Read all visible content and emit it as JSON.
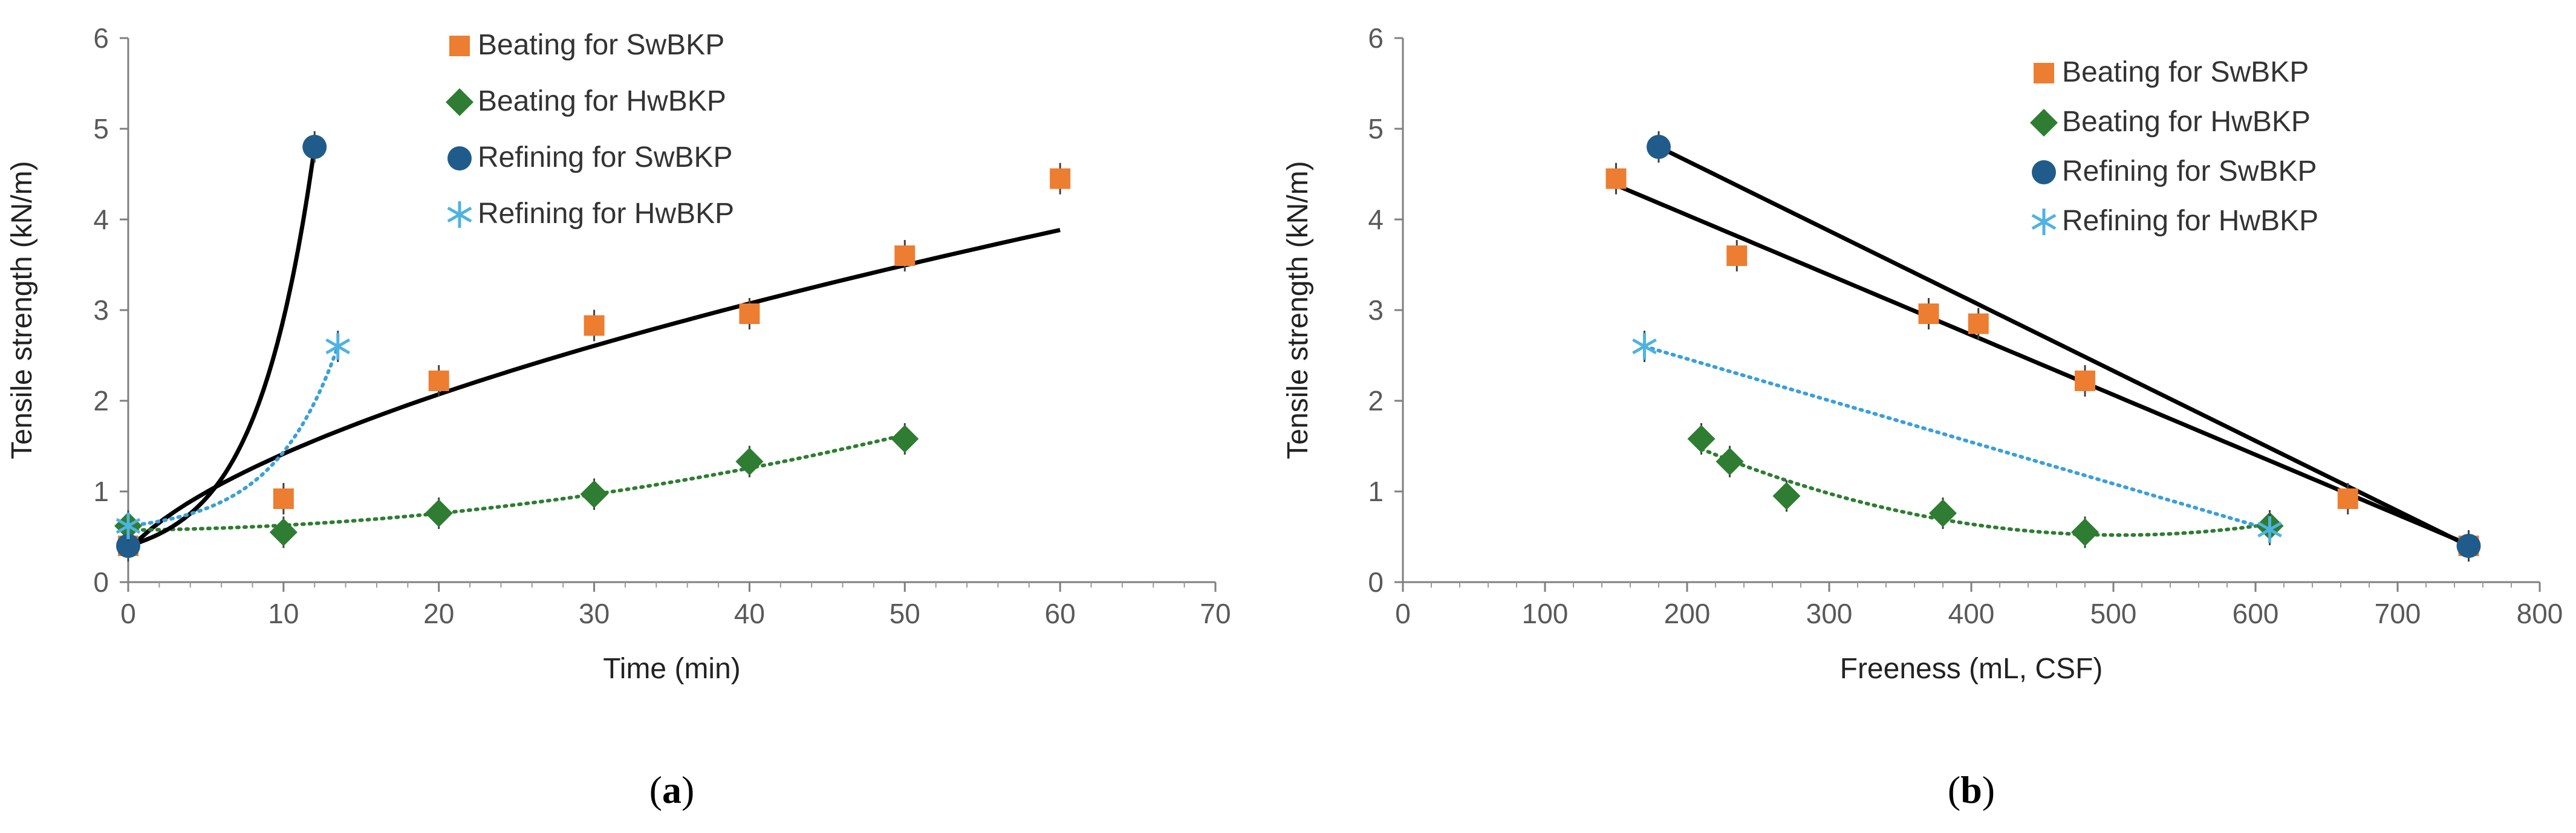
{
  "chart_data": [
    {
      "type": "scatter",
      "panel": "(a)",
      "panel_letter": "a",
      "xlabel": "Time (min)",
      "ylabel": "Tensile strength (kN/m)",
      "xlim": [
        0,
        70
      ],
      "ylim": [
        0,
        6
      ],
      "xticks": [
        0,
        10,
        20,
        30,
        40,
        50,
        60,
        70
      ],
      "yticks": [
        0,
        1,
        2,
        3,
        4,
        5,
        6
      ],
      "legend_position": "top-center",
      "series": [
        {
          "name": "Beating for SwBKP",
          "marker": "square",
          "color": "#ED7D31",
          "x": [
            0,
            10,
            20,
            30,
            40,
            50,
            60
          ],
          "y": [
            0.4,
            0.92,
            2.22,
            2.83,
            2.96,
            3.6,
            4.45
          ],
          "trendline": {
            "kind": "power",
            "color": "#000000",
            "style": "solid"
          }
        },
        {
          "name": "Beating for HwBKP",
          "marker": "diamond",
          "color": "#2E7D32",
          "x": [
            0,
            10,
            20,
            30,
            40,
            50
          ],
          "y": [
            0.62,
            0.55,
            0.76,
            0.97,
            1.33,
            1.58
          ],
          "trendline": {
            "kind": "polynomial",
            "color": "#2E7D32",
            "style": "dotted"
          }
        },
        {
          "name": "Refining for SwBKP",
          "marker": "circle",
          "color": "#1F5C8B",
          "x": [
            0,
            12
          ],
          "y": [
            0.4,
            4.8
          ],
          "trendline": {
            "kind": "exponential",
            "color": "#000000",
            "style": "solid"
          }
        },
        {
          "name": "Refining for HwBKP",
          "marker": "asterisk",
          "color": "#4FB3E0",
          "x": [
            0,
            13.5
          ],
          "y": [
            0.62,
            2.6
          ],
          "trendline": {
            "kind": "exponential",
            "color": "#3AA0D8",
            "style": "dotted"
          }
        }
      ]
    },
    {
      "type": "scatter",
      "panel": "(b)",
      "panel_letter": "b",
      "xlabel": "Freeness (mL, CSF)",
      "ylabel": "Tensile strength (kN/m)",
      "xlim": [
        0,
        800
      ],
      "ylim": [
        0,
        6
      ],
      "xticks": [
        0,
        100,
        200,
        300,
        400,
        500,
        600,
        700,
        800
      ],
      "yticks": [
        0,
        1,
        2,
        3,
        4,
        5,
        6
      ],
      "legend_position": "top-right",
      "series": [
        {
          "name": "Beating for SwBKP",
          "marker": "square",
          "color": "#ED7D31",
          "x": [
            150,
            235,
            370,
            405,
            480,
            665,
            750
          ],
          "y": [
            4.45,
            3.6,
            2.96,
            2.85,
            2.22,
            0.92,
            0.4
          ],
          "trendline": {
            "kind": "linear",
            "color": "#000000",
            "style": "solid"
          }
        },
        {
          "name": "Beating for HwBKP",
          "marker": "diamond",
          "color": "#2E7D32",
          "x": [
            210,
            230,
            270,
            380,
            480,
            610
          ],
          "y": [
            1.58,
            1.33,
            0.95,
            0.76,
            0.55,
            0.62
          ],
          "trendline": {
            "kind": "polynomial",
            "color": "#2E7D32",
            "style": "dotted"
          }
        },
        {
          "name": "Refining for SwBKP",
          "marker": "circle",
          "color": "#1F5C8B",
          "x": [
            180,
            750
          ],
          "y": [
            4.8,
            0.4
          ],
          "trendline": {
            "kind": "linear",
            "color": "#000000",
            "style": "solid"
          }
        },
        {
          "name": "Refining for HwBKP",
          "marker": "asterisk",
          "color": "#4FB3E0",
          "x": [
            170,
            610
          ],
          "y": [
            2.6,
            0.58
          ],
          "trendline": {
            "kind": "polynomial",
            "color": "#3AA0D8",
            "style": "dotted"
          }
        }
      ]
    }
  ]
}
